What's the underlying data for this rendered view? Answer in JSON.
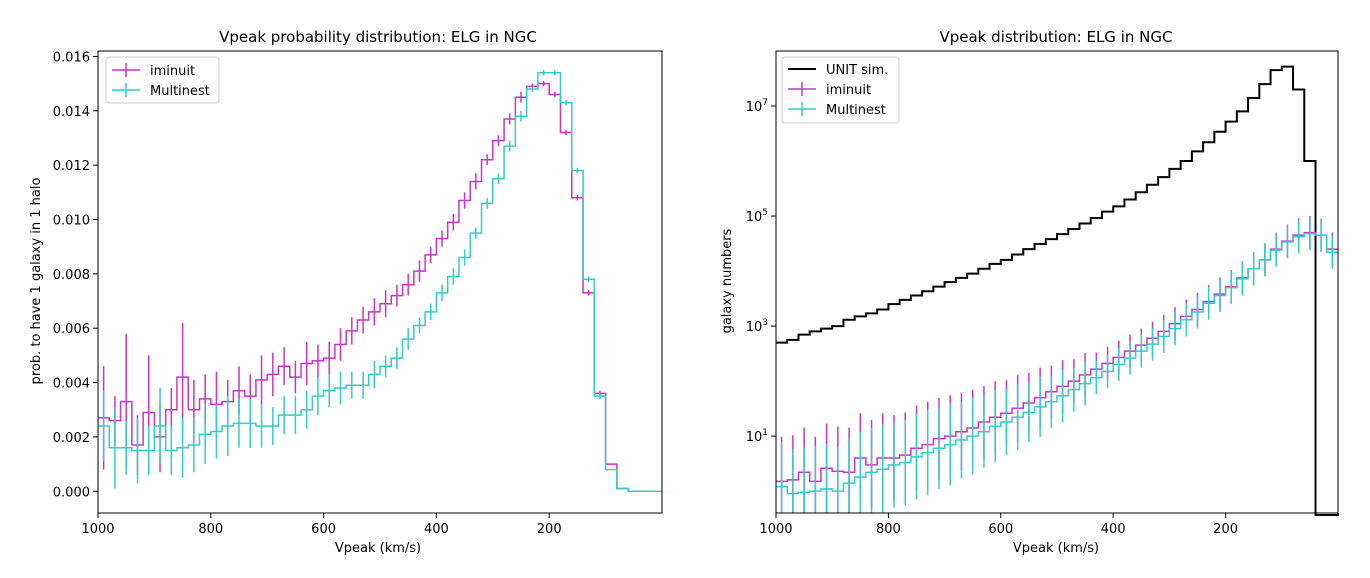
{
  "chart_data": [
    {
      "type": "line",
      "title": "Vpeak probability distribution: ELG in NGC",
      "xlabel": "Vpeak (km/s)",
      "ylabel": "prob. to have 1 galaxy in 1 halo",
      "xlim": [
        1000,
        0
      ],
      "ylim": [
        -0.0008,
        0.0162
      ],
      "x_ticks": [
        1000,
        800,
        600,
        400,
        200
      ],
      "x_tick_labels": [
        "1000",
        "800",
        "600",
        "400",
        "200"
      ],
      "y_ticks": [
        0,
        0.002,
        0.004,
        0.006,
        0.008,
        0.01,
        0.012,
        0.014,
        0.016
      ],
      "y_tick_labels": [
        "0.000",
        "0.002",
        "0.004",
        "0.006",
        "0.008",
        "0.010",
        "0.012",
        "0.014",
        "0.016"
      ],
      "grid": false,
      "legend": "top-left",
      "x": [
        990,
        970,
        950,
        930,
        910,
        890,
        870,
        850,
        830,
        810,
        790,
        770,
        750,
        730,
        710,
        690,
        670,
        650,
        630,
        610,
        590,
        570,
        550,
        530,
        510,
        490,
        470,
        450,
        430,
        410,
        390,
        370,
        350,
        330,
        310,
        290,
        270,
        250,
        230,
        210,
        190,
        170,
        150,
        130,
        110,
        90,
        70,
        50,
        30,
        10
      ],
      "series": [
        {
          "name": "iminuit",
          "color": "#cc33cc",
          "values": [
            0.0027,
            0.0026,
            0.0033,
            0.0017,
            0.0029,
            0.002,
            0.003,
            0.0042,
            0.003,
            0.0034,
            0.0032,
            0.0033,
            0.0037,
            0.0035,
            0.0041,
            0.0043,
            0.0046,
            0.0042,
            0.0047,
            0.0048,
            0.0049,
            0.0054,
            0.0059,
            0.0063,
            0.0066,
            0.0069,
            0.0072,
            0.0076,
            0.0081,
            0.0087,
            0.0093,
            0.0099,
            0.0107,
            0.0114,
            0.0122,
            0.0129,
            0.0137,
            0.0145,
            0.0149,
            0.015,
            0.0146,
            0.0132,
            0.0108,
            0.0073,
            0.0036,
            0.001,
            0.0001,
            0.0,
            0.0,
            0.0
          ],
          "errors": [
            0.0019,
            0.0009,
            0.0025,
            0.0011,
            0.0021,
            0.0013,
            0.0008,
            0.002,
            0.0011,
            0.0009,
            0.0012,
            0.0008,
            0.0009,
            0.0008,
            0.0009,
            0.0008,
            0.0007,
            0.0006,
            0.0008,
            0.0006,
            0.0006,
            0.0006,
            0.0005,
            0.0005,
            0.0005,
            0.0005,
            0.0004,
            0.0004,
            0.0004,
            0.0003,
            0.0003,
            0.0003,
            0.0003,
            0.0003,
            0.0002,
            0.0002,
            0.0002,
            0.0002,
            0.0001,
            0.0001,
            0.0001,
            0.0001,
            0.0001,
            0.0001,
            0.0001,
            0.0,
            0.0,
            0.0,
            0.0,
            0.0
          ]
        },
        {
          "name": "Multinest",
          "color": "#33cccc",
          "values": [
            0.0024,
            0.0016,
            0.0016,
            0.0015,
            0.0015,
            0.0024,
            0.0015,
            0.0016,
            0.0017,
            0.0021,
            0.0022,
            0.0024,
            0.0025,
            0.0025,
            0.0024,
            0.0024,
            0.0028,
            0.0028,
            0.003,
            0.0035,
            0.0037,
            0.0038,
            0.0039,
            0.0039,
            0.0043,
            0.0046,
            0.0049,
            0.0056,
            0.0061,
            0.0066,
            0.0073,
            0.0079,
            0.0086,
            0.0095,
            0.0106,
            0.0115,
            0.0127,
            0.0138,
            0.0148,
            0.0154,
            0.0154,
            0.0143,
            0.0118,
            0.0078,
            0.0035,
            0.0008,
            0.0001,
            0.0,
            0.0,
            0.0
          ],
          "errors": [
            0.0013,
            0.0015,
            0.001,
            0.0012,
            0.0009,
            0.0014,
            0.0009,
            0.0011,
            0.001,
            0.0011,
            0.001,
            0.0011,
            0.0009,
            0.0009,
            0.0008,
            0.0007,
            0.0007,
            0.0007,
            0.0007,
            0.0007,
            0.0006,
            0.0006,
            0.0005,
            0.0005,
            0.0005,
            0.0004,
            0.0004,
            0.0004,
            0.0003,
            0.0003,
            0.0003,
            0.0003,
            0.0003,
            0.0002,
            0.0002,
            0.0002,
            0.0002,
            0.0002,
            0.0001,
            0.0001,
            0.0001,
            0.0001,
            0.0001,
            0.0001,
            0.0001,
            0.0,
            0.0,
            0.0,
            0.0,
            0.0
          ]
        }
      ]
    },
    {
      "type": "line",
      "title": "Vpeak distribution: ELG in NGC",
      "xlabel": "Vpeak (km/s)",
      "ylabel": "galaxy numbers",
      "xlim": [
        1000,
        0
      ],
      "ylim": [
        0.4,
        100000000
      ],
      "yscale": "log",
      "x_ticks": [
        1000,
        800,
        600,
        400,
        200
      ],
      "x_tick_labels": [
        "1000",
        "800",
        "600",
        "400",
        "200"
      ],
      "y_ticks": [
        10,
        1000,
        100000,
        10000000
      ],
      "y_tick_bases": [
        "10",
        "10",
        "10",
        "10"
      ],
      "y_tick_exponents": [
        "1",
        "3",
        "5",
        "7"
      ],
      "grid": false,
      "legend": "top-left",
      "x": [
        990,
        970,
        950,
        930,
        910,
        890,
        870,
        850,
        830,
        810,
        790,
        770,
        750,
        730,
        710,
        690,
        670,
        650,
        630,
        610,
        590,
        570,
        550,
        530,
        510,
        490,
        470,
        450,
        430,
        410,
        390,
        370,
        350,
        330,
        310,
        290,
        270,
        250,
        230,
        210,
        190,
        170,
        150,
        130,
        110,
        90,
        70,
        50,
        30,
        10
      ],
      "series": [
        {
          "name": "UNIT sim.",
          "color": "#000000",
          "values": [
            500,
            560,
            700,
            800,
            900,
            1000,
            1300,
            1500,
            1700,
            2000,
            2500,
            3000,
            3600,
            4300,
            5200,
            6300,
            7500,
            9000,
            11000,
            13500,
            16000,
            20000,
            25000,
            31000,
            38000,
            47000,
            58000,
            73000,
            92000,
            120000,
            150000,
            200000,
            270000,
            370000,
            510000,
            720000,
            1000000,
            1500000,
            2200000,
            3400000,
            5200000,
            8000000,
            14000000,
            25000000,
            45000000,
            52000000,
            20000000,
            1000000,
            0,
            0
          ],
          "errors": []
        },
        {
          "name": "iminuit",
          "color": "#cc33cc",
          "values": [
            1.5,
            1.6,
            2.2,
            1.5,
            2.6,
            2.3,
            2.2,
            4.0,
            3.0,
            4.0,
            4.0,
            4.5,
            6.0,
            7.0,
            9.0,
            10.0,
            12.0,
            14.0,
            18.0,
            22.0,
            26.0,
            32.0,
            40.0,
            50.0,
            64.0,
            80.0,
            100.0,
            130.0,
            165.0,
            210.0,
            270.0,
            350.0,
            450.0,
            600.0,
            800.0,
            1100.0,
            1500.0,
            2000.0,
            2800.0,
            3800.0,
            5200.0,
            7500.0,
            11000.0,
            16000.0,
            25000.0,
            35000.0,
            45000.0,
            50000.0,
            45000.0,
            25000.0
          ],
          "errors": [
            5.5,
            5.5,
            5.5,
            5.5,
            5.5,
            5.5,
            5.5,
            5.5,
            5.5,
            5.5,
            5.0,
            5.0,
            5.0,
            5.0,
            4.5,
            4.5,
            4.0,
            4.0,
            3.5,
            3.5,
            3.0,
            3.0,
            2.5,
            2.5,
            2.0,
            2.0,
            1.5,
            1.5,
            1.0,
            1.0,
            1.0,
            1.0,
            1.0,
            1.0,
            1.0,
            1.0,
            1.0,
            1.0,
            1.0,
            1.0,
            1.0,
            1.0,
            1.0,
            1.0,
            1.0,
            1.0,
            1.0,
            1.0,
            1.0,
            1.0
          ]
        },
        {
          "name": "Multinest",
          "color": "#33cccc",
          "values": [
            1.2,
            0.9,
            0.95,
            1.0,
            1.1,
            1.0,
            1.4,
            1.8,
            2.2,
            2.5,
            3.0,
            3.3,
            4.2,
            5.0,
            6.0,
            7.0,
            8.5,
            10.0,
            12.0,
            15.0,
            18.0,
            22.0,
            27.0,
            34.0,
            42.0,
            54.0,
            70.0,
            90.0,
            115.0,
            150.0,
            200.0,
            260.0,
            350.0,
            470.0,
            650.0,
            900.0,
            1300.0,
            1800.0,
            2600.0,
            3600.0,
            5000.0,
            7200.0,
            11000.0,
            16000.0,
            24000.0,
            34000.0,
            42000.0,
            48000.0,
            45000.0,
            22000.0
          ],
          "errors": [
            5.5,
            5.5,
            5.5,
            5.5,
            5.5,
            5.5,
            5.5,
            5.5,
            5.5,
            5.5,
            5.0,
            5.0,
            5.0,
            5.0,
            4.5,
            4.5,
            4.0,
            4.0,
            3.5,
            3.5,
            3.0,
            3.0,
            2.5,
            2.5,
            2.0,
            2.0,
            1.5,
            1.5,
            1.0,
            1.0,
            1.0,
            1.0,
            1.0,
            1.0,
            1.0,
            1.0,
            1.0,
            1.0,
            1.0,
            1.0,
            1.0,
            1.0,
            1.0,
            1.0,
            1.0,
            1.0,
            1.0,
            1.0,
            1.0,
            1.0
          ]
        }
      ]
    }
  ]
}
